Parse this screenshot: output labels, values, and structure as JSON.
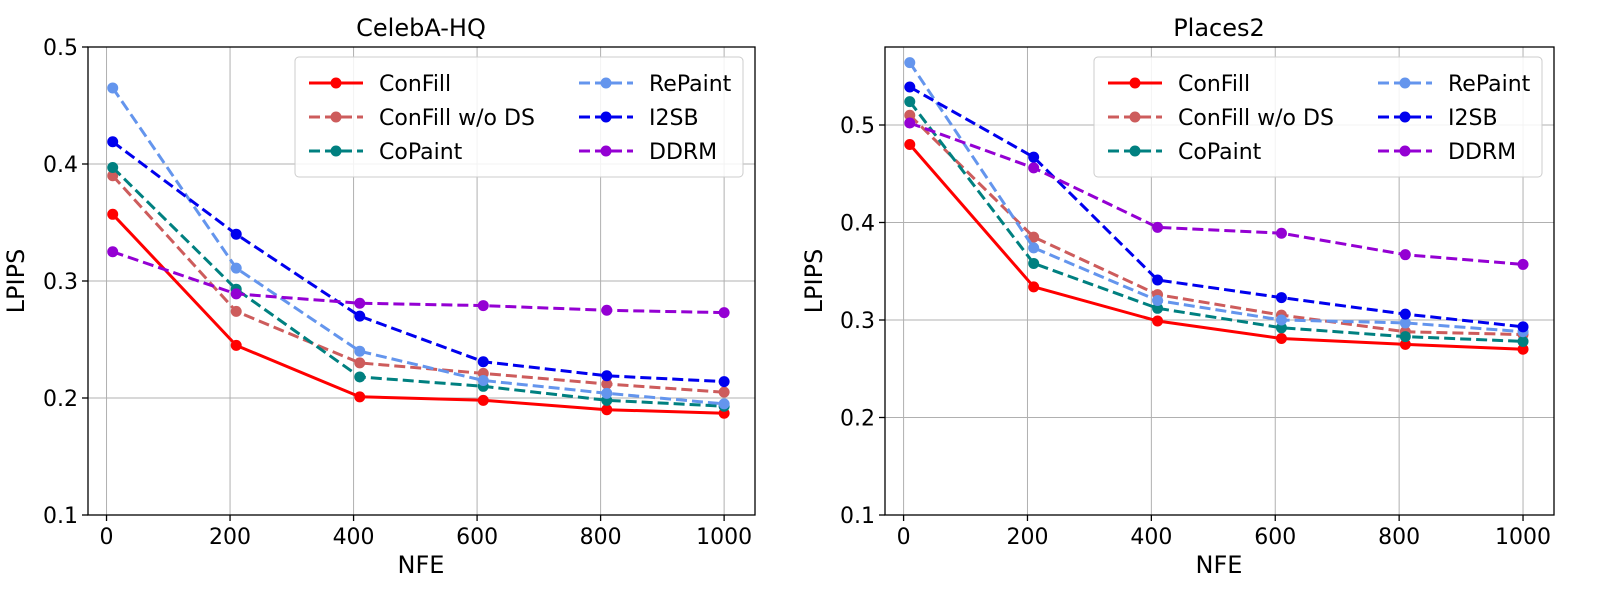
{
  "chart_data": [
    {
      "type": "line",
      "title": "CelebA-HQ",
      "xlabel": "NFE",
      "ylabel": "LPIPS",
      "xlim": [
        -30,
        1050
      ],
      "ylim": [
        0.1,
        0.5
      ],
      "xticks": [
        0,
        200,
        400,
        600,
        800,
        1000
      ],
      "yticks": [
        0.1,
        0.2,
        0.3,
        0.4,
        0.5
      ],
      "xtick_labels": [
        "0",
        "200",
        "400",
        "600",
        "800",
        "1000"
      ],
      "ytick_labels": [
        "0.1",
        "0.2",
        "0.3",
        "0.4",
        "0.5"
      ],
      "grid": true,
      "legend_location": "top-right",
      "x": [
        10,
        210,
        410,
        610,
        810,
        1000
      ],
      "series": [
        {
          "name": "ConFill",
          "color": "#ff0000",
          "style": "solid",
          "values": [
            0.357,
            0.245,
            0.201,
            0.198,
            0.19,
            0.187
          ]
        },
        {
          "name": "ConFill w/o DS",
          "color": "#cd5c5c",
          "style": "dashed",
          "values": [
            0.39,
            0.274,
            0.23,
            0.221,
            0.212,
            0.205
          ]
        },
        {
          "name": "CoPaint",
          "color": "#008080",
          "style": "dashed",
          "values": [
            0.397,
            0.293,
            0.218,
            0.21,
            0.198,
            0.193
          ]
        },
        {
          "name": "RePaint",
          "color": "#6495ed",
          "style": "dashed",
          "values": [
            0.465,
            0.311,
            0.24,
            0.215,
            0.204,
            0.195
          ]
        },
        {
          "name": "I2SB",
          "color": "#0000ee",
          "style": "dashed",
          "values": [
            0.419,
            0.34,
            0.27,
            0.231,
            0.219,
            0.214
          ]
        },
        {
          "name": "DDRM",
          "color": "#9400d3",
          "style": "dashed",
          "values": [
            0.325,
            0.289,
            0.281,
            0.279,
            0.275,
            0.273
          ]
        }
      ]
    },
    {
      "type": "line",
      "title": "Places2",
      "xlabel": "NFE",
      "ylabel": "LPIPS",
      "xlim": [
        -30,
        1050
      ],
      "ylim": [
        0.1,
        0.58
      ],
      "xticks": [
        0,
        200,
        400,
        600,
        800,
        1000
      ],
      "yticks": [
        0.1,
        0.2,
        0.3,
        0.4,
        0.5
      ],
      "xtick_labels": [
        "0",
        "200",
        "400",
        "600",
        "800",
        "1000"
      ],
      "ytick_labels": [
        "0.1",
        "0.2",
        "0.3",
        "0.4",
        "0.5"
      ],
      "grid": true,
      "legend_location": "top-right",
      "x": [
        10,
        210,
        410,
        610,
        810,
        1000
      ],
      "series": [
        {
          "name": "ConFill",
          "color": "#ff0000",
          "style": "solid",
          "values": [
            0.48,
            0.334,
            0.299,
            0.281,
            0.275,
            0.27
          ]
        },
        {
          "name": "ConFill w/o DS",
          "color": "#cd5c5c",
          "style": "dashed",
          "values": [
            0.51,
            0.385,
            0.326,
            0.305,
            0.288,
            0.285
          ]
        },
        {
          "name": "CoPaint",
          "color": "#008080",
          "style": "dashed",
          "values": [
            0.524,
            0.358,
            0.312,
            0.292,
            0.283,
            0.278
          ]
        },
        {
          "name": "RePaint",
          "color": "#6495ed",
          "style": "dashed",
          "values": [
            0.564,
            0.374,
            0.32,
            0.3,
            0.297,
            0.288
          ]
        },
        {
          "name": "I2SB",
          "color": "#0000ee",
          "style": "dashed",
          "values": [
            0.539,
            0.467,
            0.341,
            0.323,
            0.306,
            0.293
          ]
        },
        {
          "name": "DDRM",
          "color": "#9400d3",
          "style": "dashed",
          "values": [
            0.502,
            0.456,
            0.395,
            0.389,
            0.367,
            0.357
          ]
        }
      ]
    }
  ]
}
